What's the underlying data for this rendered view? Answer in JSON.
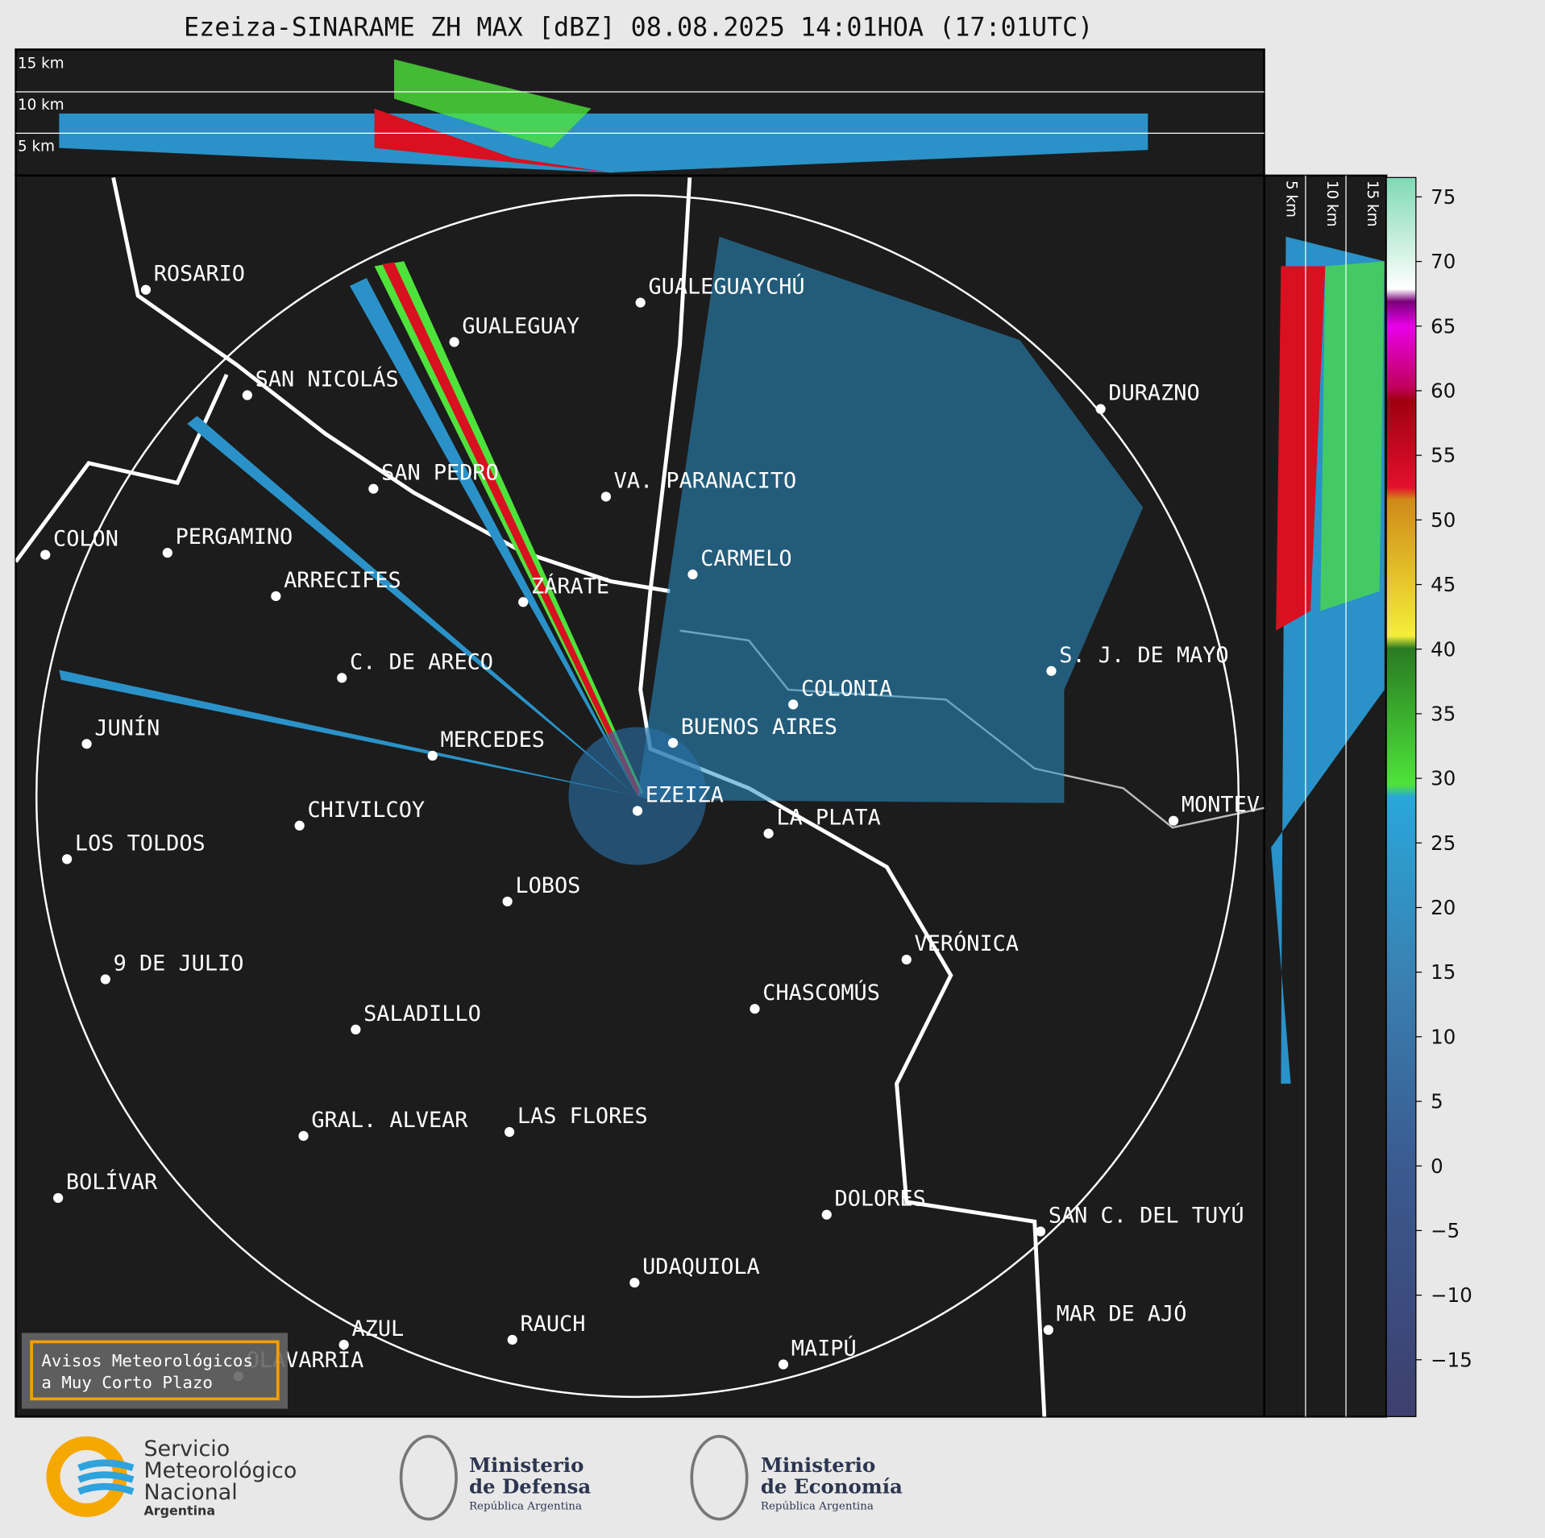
{
  "header": {
    "title": "Ezeiza-SINARAME ZH MAX [dBZ] 08.08.2025 14:01HOA (17:01UTC)"
  },
  "height_labels": [
    "15 km",
    "10 km",
    "5 km"
  ],
  "side_height_labels": [
    "5 km",
    "10 km",
    "15 km"
  ],
  "cities": [
    "ROSARIO",
    "GUALEGUAYCHÚ",
    "GUALEGUAY",
    "SAN NICOLÁS",
    "DURAZNO",
    "SAN PEDRO",
    "VA. PARANACITO",
    "COLON",
    "PERGAMINO",
    "CARMELO",
    "ARRECIFES",
    "ZÁRATE",
    "S. J. DE MAYO",
    "C. DE ARECO",
    "COLONIA",
    "BUENOS AIRES",
    "JUNÍN",
    "MERCEDES",
    "EZEIZA",
    "MONTEV",
    "LA PLATA",
    "CHIVILCOY",
    "LOS TOLDOS",
    "LOBOS",
    "VERÓNICA",
    "9 DE JULIO",
    "CHASCOMÚS",
    "SALADILLO",
    "GRAL. ALVEAR",
    "LAS FLORES",
    "BOLÍVAR",
    "DOLORES",
    "SAN C. DEL TUYÚ",
    "UDAQUIOLA",
    "RAUCH",
    "MAR DE AJÓ",
    "AZUL",
    "OLAVARRÍA",
    "MAIPÚ"
  ],
  "colorbar": {
    "lim": [
      -19.4,
      76.5
    ],
    "ticks": [
      {
        "value": -15,
        "label": "−15"
      },
      {
        "value": -10,
        "label": "−10"
      },
      {
        "value": -5,
        "label": "−5"
      },
      0,
      5,
      10,
      15,
      20,
      25,
      30,
      35,
      40,
      45,
      50,
      55,
      60,
      65,
      70,
      75
    ]
  },
  "warning_box": {
    "lines": [
      "Avisos Meteorológicos",
      "a Muy Corto Plazo"
    ]
  },
  "footer": {
    "smn": [
      "Servicio",
      "Meteorológico",
      "Nacional",
      "Argentina"
    ],
    "defensa": [
      "Ministerio",
      "de Defensa",
      "República Argentina"
    ],
    "economia": [
      "Ministerio",
      "de Economía",
      "República Argentina"
    ]
  }
}
